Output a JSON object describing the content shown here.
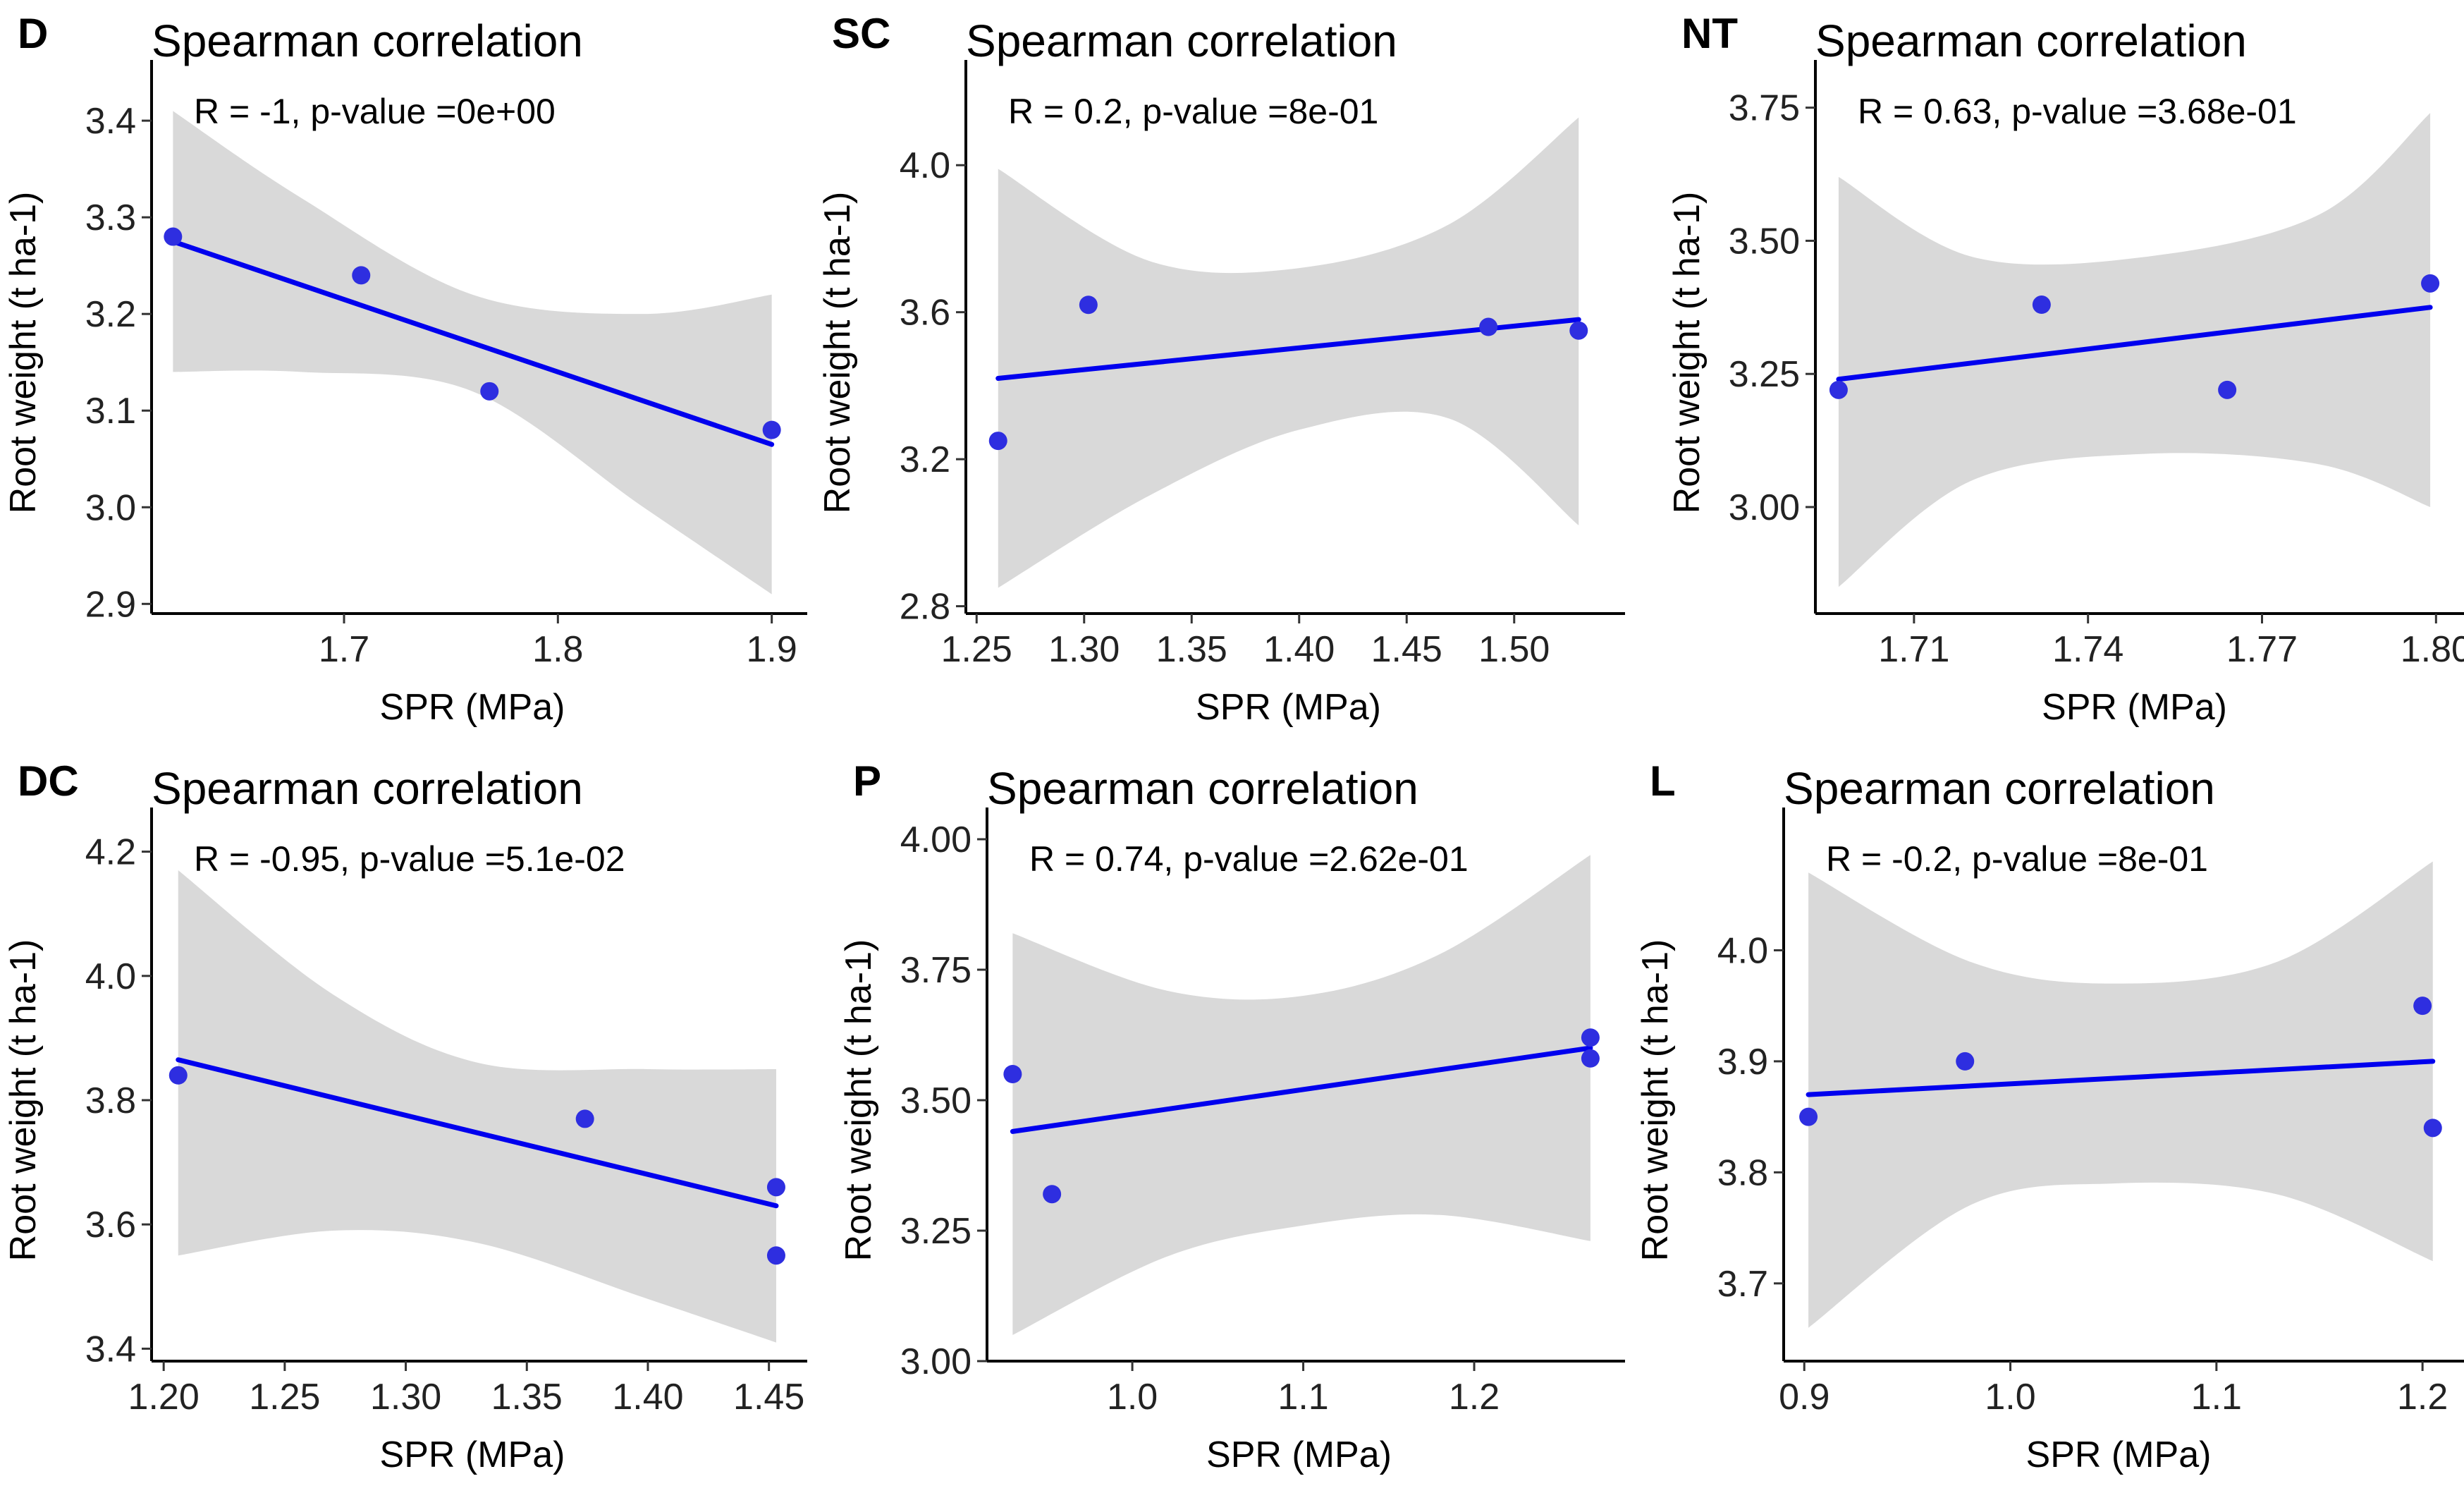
{
  "figure": {
    "x_axis_label": "SPR (MPa)",
    "y_axis_label": "Root weight (t ha-1)",
    "colors": {
      "points": "#2e2ee0",
      "fit_line": "#0000ee",
      "confidence_band": "#d9d9d9",
      "axis": "#000000"
    }
  },
  "chart_data": [
    {
      "type": "scatter",
      "panel": "D",
      "title": "Spearman correlation",
      "stat": "R = -1, p-value =0e+00",
      "xlabel": "SPR (MPa)",
      "ylabel": "Root weight (t ha-1)",
      "xlim": [
        1.61,
        1.91
      ],
      "ylim": [
        2.89,
        3.43
      ],
      "xticks": [
        1.7,
        1.8,
        1.9
      ],
      "xtick_labels": [
        "1.7",
        "1.8",
        "1.9"
      ],
      "yticks": [
        2.9,
        3.0,
        3.1,
        3.2,
        3.3,
        3.4
      ],
      "ytick_labels": [
        "2.9",
        "3.0",
        "3.1",
        "3.2",
        "3.3",
        "3.4"
      ],
      "x": [
        1.62,
        1.708,
        1.768,
        1.9
      ],
      "y": [
        3.28,
        3.24,
        3.12,
        3.08
      ],
      "fit": {
        "x": [
          1.62,
          1.9
        ],
        "y": [
          3.275,
          3.065
        ]
      },
      "band": {
        "x": [
          1.62,
          1.68,
          1.76,
          1.84,
          1.9
        ],
        "upper": [
          3.41,
          3.32,
          3.22,
          3.2,
          3.22
        ],
        "lower": [
          3.14,
          3.14,
          3.12,
          3.0,
          2.91
        ]
      }
    },
    {
      "type": "scatter",
      "panel": "SC",
      "title": "Spearman correlation",
      "stat": "R = 0.2, p-value =8e-01",
      "xlabel": "SPR (MPa)",
      "ylabel": "Root weight (t ha-1)",
      "xlim": [
        1.245,
        1.545
      ],
      "ylim": [
        2.78,
        4.2
      ],
      "xticks": [
        1.25,
        1.3,
        1.35,
        1.4,
        1.45,
        1.5
      ],
      "xtick_labels": [
        "1.25",
        "1.30",
        "1.35",
        "1.40",
        "1.45",
        "1.50"
      ],
      "yticks": [
        2.8,
        3.2,
        3.6,
        4.0
      ],
      "ytick_labels": [
        "2.8",
        "3.2",
        "3.6",
        "4.0"
      ],
      "x": [
        1.26,
        1.302,
        1.488,
        1.53
      ],
      "y": [
        3.25,
        3.62,
        3.56,
        3.55
      ],
      "fit": {
        "x": [
          1.26,
          1.53
        ],
        "y": [
          3.42,
          3.58
        ]
      },
      "band": {
        "x": [
          1.26,
          1.33,
          1.4,
          1.47,
          1.53
        ],
        "upper": [
          3.99,
          3.74,
          3.72,
          3.84,
          4.13
        ],
        "lower": [
          2.85,
          3.1,
          3.28,
          3.31,
          3.02
        ]
      }
    },
    {
      "type": "scatter",
      "panel": "NT",
      "title": "Spearman correlation",
      "stat": "R = 0.63, p-value =3.68e-01",
      "xlabel": "SPR (MPa)",
      "ylabel": "Root weight (t ha-1)",
      "xlim": [
        1.693,
        1.803
      ],
      "ylim": [
        2.8,
        3.78
      ],
      "xticks": [
        1.71,
        1.74,
        1.77,
        1.8
      ],
      "xtick_labels": [
        "1.71",
        "1.74",
        "1.77",
        "1.80"
      ],
      "yticks": [
        3.0,
        3.25,
        3.5,
        3.75
      ],
      "ytick_labels": [
        "3.00",
        "3.25",
        "3.50",
        "3.75"
      ],
      "x": [
        1.697,
        1.732,
        1.764,
        1.799
      ],
      "y": [
        3.22,
        3.38,
        3.22,
        3.42
      ],
      "fit": {
        "x": [
          1.697,
          1.799
        ],
        "y": [
          3.24,
          3.375
        ]
      },
      "band": {
        "x": [
          1.697,
          1.72,
          1.75,
          1.78,
          1.799
        ],
        "upper": [
          3.62,
          3.47,
          3.47,
          3.55,
          3.74
        ],
        "lower": [
          2.85,
          3.05,
          3.1,
          3.08,
          3.0
        ]
      }
    },
    {
      "type": "scatter",
      "panel": "DC",
      "title": "Spearman correlation",
      "stat": "R = -0.95, p-value =5.1e-02",
      "xlabel": "SPR (MPa)",
      "ylabel": "Root weight (t ha-1)",
      "xlim": [
        1.195,
        1.46
      ],
      "ylim": [
        3.38,
        4.22
      ],
      "xticks": [
        1.2,
        1.25,
        1.3,
        1.35,
        1.4,
        1.45
      ],
      "xtick_labels": [
        "1.20",
        "1.25",
        "1.30",
        "1.35",
        "1.40",
        "1.45"
      ],
      "yticks": [
        3.4,
        3.6,
        3.8,
        4.0,
        4.2
      ],
      "ytick_labels": [
        "3.4",
        "3.6",
        "3.8",
        "4.0",
        "4.2"
      ],
      "x": [
        1.206,
        1.374,
        1.453,
        1.453
      ],
      "y": [
        3.84,
        3.77,
        3.66,
        3.55
      ],
      "fit": {
        "x": [
          1.206,
          1.453
        ],
        "y": [
          3.865,
          3.63
        ]
      },
      "band": {
        "x": [
          1.206,
          1.27,
          1.33,
          1.4,
          1.453
        ],
        "upper": [
          4.17,
          3.97,
          3.86,
          3.85,
          3.85
        ],
        "lower": [
          3.55,
          3.59,
          3.57,
          3.48,
          3.41
        ]
      }
    },
    {
      "type": "scatter",
      "panel": "P",
      "title": "Spearman correlation",
      "stat": "R = 0.74, p-value =2.62e-01",
      "xlabel": "SPR (MPa)",
      "ylabel": "Root weight (t ha-1)",
      "xlim": [
        0.915,
        1.28
      ],
      "ylim": [
        3.0,
        4.0
      ],
      "xticks": [
        1.0,
        1.1,
        1.2
      ],
      "xtick_labels": [
        "1.0",
        "1.1",
        "1.2"
      ],
      "yticks": [
        3.0,
        3.25,
        3.5,
        3.75,
        4.0
      ],
      "ytick_labels": [
        "3.00",
        "3.25",
        "3.50",
        "3.75",
        "4.00"
      ],
      "x": [
        0.93,
        0.953,
        1.268,
        1.268
      ],
      "y": [
        3.55,
        3.32,
        3.62,
        3.58
      ],
      "fit": {
        "x": [
          0.93,
          1.268
        ],
        "y": [
          3.44,
          3.6
        ]
      },
      "band": {
        "x": [
          0.93,
          1.02,
          1.1,
          1.18,
          1.268
        ],
        "upper": [
          3.82,
          3.71,
          3.7,
          3.78,
          3.97
        ],
        "lower": [
          3.05,
          3.2,
          3.26,
          3.28,
          3.23
        ]
      }
    },
    {
      "type": "scatter",
      "panel": "L",
      "title": "Spearman correlation",
      "stat": "R = -0.2, p-value =8e-01",
      "xlabel": "SPR (MPa)",
      "ylabel": "Root weight (t ha-1)",
      "xlim": [
        0.89,
        1.215
      ],
      "ylim": [
        3.63,
        4.1
      ],
      "xticks": [
        0.9,
        1.0,
        1.1,
        1.2
      ],
      "xtick_labels": [
        "0.9",
        "1.0",
        "1.1",
        "1.2"
      ],
      "yticks": [
        3.7,
        3.8,
        3.9,
        4.0
      ],
      "ytick_labels": [
        "3.7",
        "3.8",
        "3.9",
        "4.0"
      ],
      "x": [
        0.902,
        0.978,
        1.2,
        1.205
      ],
      "y": [
        3.85,
        3.9,
        3.95,
        3.84
      ],
      "fit": {
        "x": [
          0.902,
          1.205
        ],
        "y": [
          3.87,
          3.9
        ]
      },
      "band": {
        "x": [
          0.902,
          0.98,
          1.05,
          1.13,
          1.205
        ],
        "upper": [
          4.07,
          3.99,
          3.97,
          3.99,
          4.08
        ],
        "lower": [
          3.66,
          3.77,
          3.79,
          3.78,
          3.72
        ]
      }
    }
  ]
}
